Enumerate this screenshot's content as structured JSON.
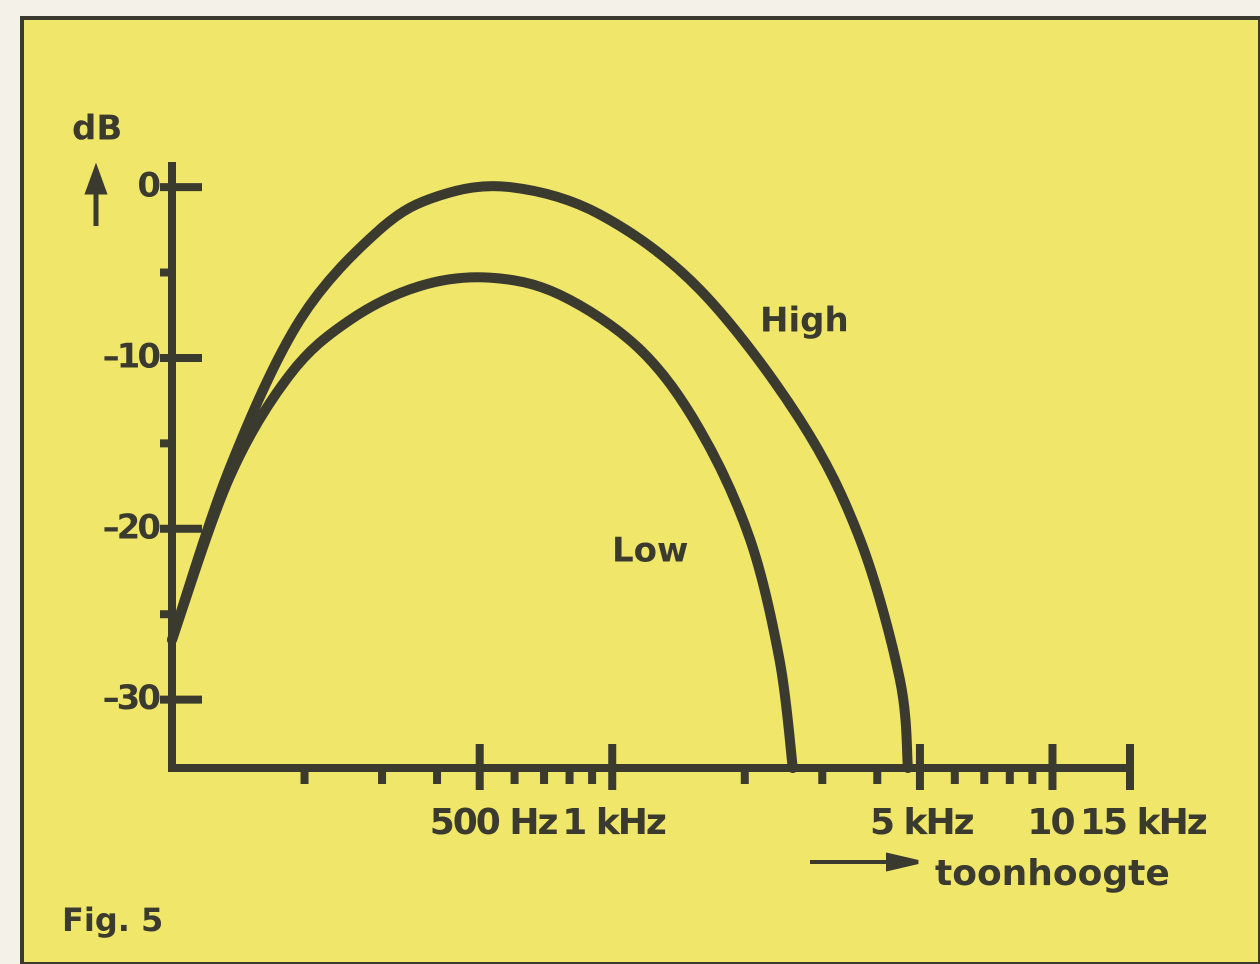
{
  "chart_data": {
    "type": "line",
    "figure_label": "Fig. 5",
    "ylabel": "dB",
    "xlabel": "toonhoogte",
    "xscale": "log",
    "xlim": [
      100,
      15000
    ],
    "xticks": [
      {
        "value": 500,
        "label": "500 Hz"
      },
      {
        "value": 1000,
        "label": "1 kHz"
      },
      {
        "value": 5000,
        "label": "5 kHz"
      },
      {
        "value": 10000,
        "label": "10"
      },
      {
        "value": 15000,
        "label": "15 kHz"
      }
    ],
    "xminor_ticks": [
      200,
      300,
      400,
      600,
      700,
      800,
      900,
      2000,
      3000,
      4000,
      6000,
      7000,
      8000,
      9000
    ],
    "ylim": [
      -34,
      1
    ],
    "yticks": [
      0,
      {
        "value": -10,
        "label": "–10"
      },
      {
        "value": -20,
        "label": "–20"
      },
      {
        "value": -30,
        "label": "–30"
      }
    ],
    "yminor_ticks": [
      -5,
      -15,
      -25
    ],
    "series": [
      {
        "name": "High",
        "color": "#3b3a2e",
        "x": [
          100,
          135,
          195,
          296,
          405,
          585,
          937,
          1581,
          2667,
          3652,
          4500,
          4695
        ],
        "values": [
          -26.5,
          -16.5,
          -7.8,
          -2.5,
          -0.5,
          0,
          -1.6,
          -6,
          -13.6,
          -20.6,
          -28.8,
          -34
        ]
      },
      {
        "name": "Low",
        "color": "#3b3a2e",
        "x": [
          100,
          135,
          185,
          253,
          365,
          526,
          760,
          1156,
          1581,
          2055,
          2400,
          2571
        ],
        "values": [
          -26.5,
          -17,
          -11,
          -7.8,
          -5.8,
          -5.3,
          -6.3,
          -9.5,
          -14.2,
          -20.6,
          -27.7,
          -34
        ]
      }
    ]
  }
}
